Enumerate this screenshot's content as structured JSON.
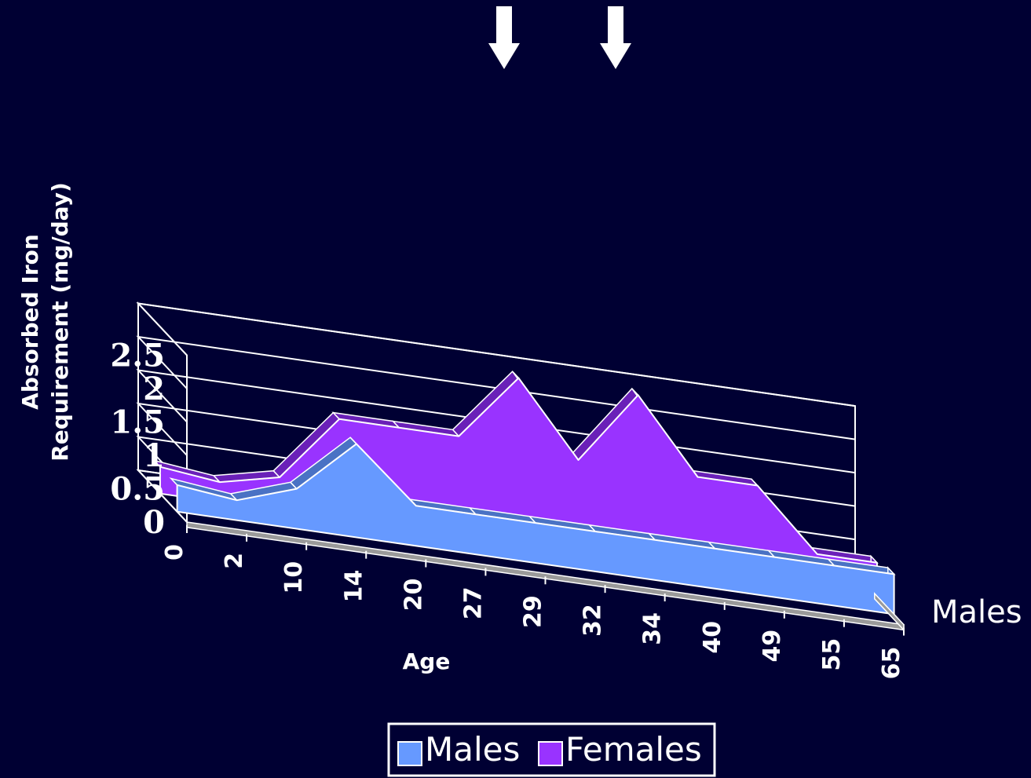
{
  "colors": {
    "background": "#000033",
    "grid": "#ffffff",
    "males": "#6699ff",
    "males_side": "#4a72c4",
    "females": "#9933ff",
    "females_side": "#6a20b8",
    "floor": "#9a9a9a"
  },
  "chart_data": {
    "type": "area",
    "style": "3d-stacked-depth",
    "title": "",
    "xlabel": "Age",
    "ylabel_lines": [
      "Absorbed Iron",
      "Requirement (mg/day)"
    ],
    "ylim": [
      0,
      2.5
    ],
    "y_ticks": [
      "0",
      "0.5",
      "1",
      "1.5",
      "2",
      "2.5"
    ],
    "x_ticks": [
      "0",
      "2",
      "10",
      "14",
      "20",
      "27",
      "29",
      "32",
      "34",
      "40",
      "49",
      "55",
      "65"
    ],
    "depth_axis_label": "Males",
    "grid": true,
    "legend_position": "bottom",
    "annotations": [
      {
        "type": "arrow-down",
        "target": "29"
      },
      {
        "type": "arrow-down",
        "target": "34"
      }
    ],
    "series": [
      {
        "name": "Males",
        "values": [
          0.4,
          0.3,
          0.6,
          1.4,
          0.6,
          0.6,
          0.6,
          0.6,
          0.6,
          0.6,
          0.6,
          0.6,
          0.6
        ]
      },
      {
        "name": "Females",
        "values": [
          0.4,
          0.3,
          0.5,
          1.5,
          1.5,
          1.5,
          2.5,
          1.4,
          2.5,
          1.4,
          1.4,
          0.5,
          0.5
        ]
      }
    ]
  }
}
